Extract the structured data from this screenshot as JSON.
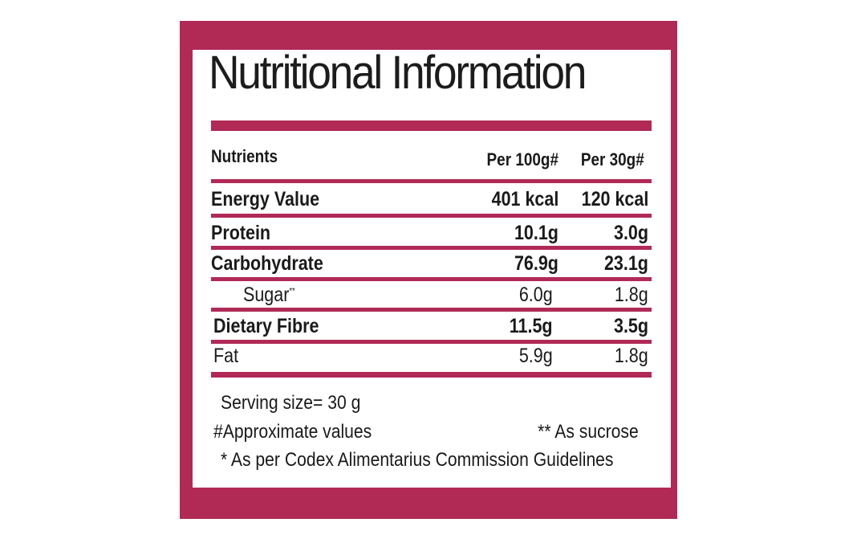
{
  "title": "Nutritional Information",
  "colors": {
    "accent": "#b02a55",
    "panel": "#ffffff",
    "text": "#1a1a1a"
  },
  "table": {
    "headers": {
      "nutrient": "Nutrients",
      "per100": "Per 100g#",
      "per30": "Per 30g#"
    },
    "rows": [
      {
        "name": "Energy Value",
        "per100": "401 kcal",
        "per30": "120 kcal",
        "bold": true
      },
      {
        "name": "Protein",
        "per100": "10.1g",
        "per30": "3.0g",
        "bold": true
      },
      {
        "name": "Carbohydrate",
        "per100": "76.9g",
        "per30": "23.1g",
        "bold": true
      },
      {
        "name": "Sugar",
        "sup": "**",
        "per100": "6.0g",
        "per30": "1.8g",
        "bold": false
      },
      {
        "name": "Dietary Fibre",
        "per100": "11.5g",
        "per30": "3.5g",
        "bold": true
      },
      {
        "name": "Fat",
        "per100": "5.9g",
        "per30": "1.8g",
        "bold": false
      }
    ]
  },
  "footnotes": {
    "serving": "Serving size= 30 g",
    "approx": "#Approximate values",
    "sucrose": "** As sucrose",
    "codex": "* As per Codex Alimentarius Commission Guidelines"
  }
}
